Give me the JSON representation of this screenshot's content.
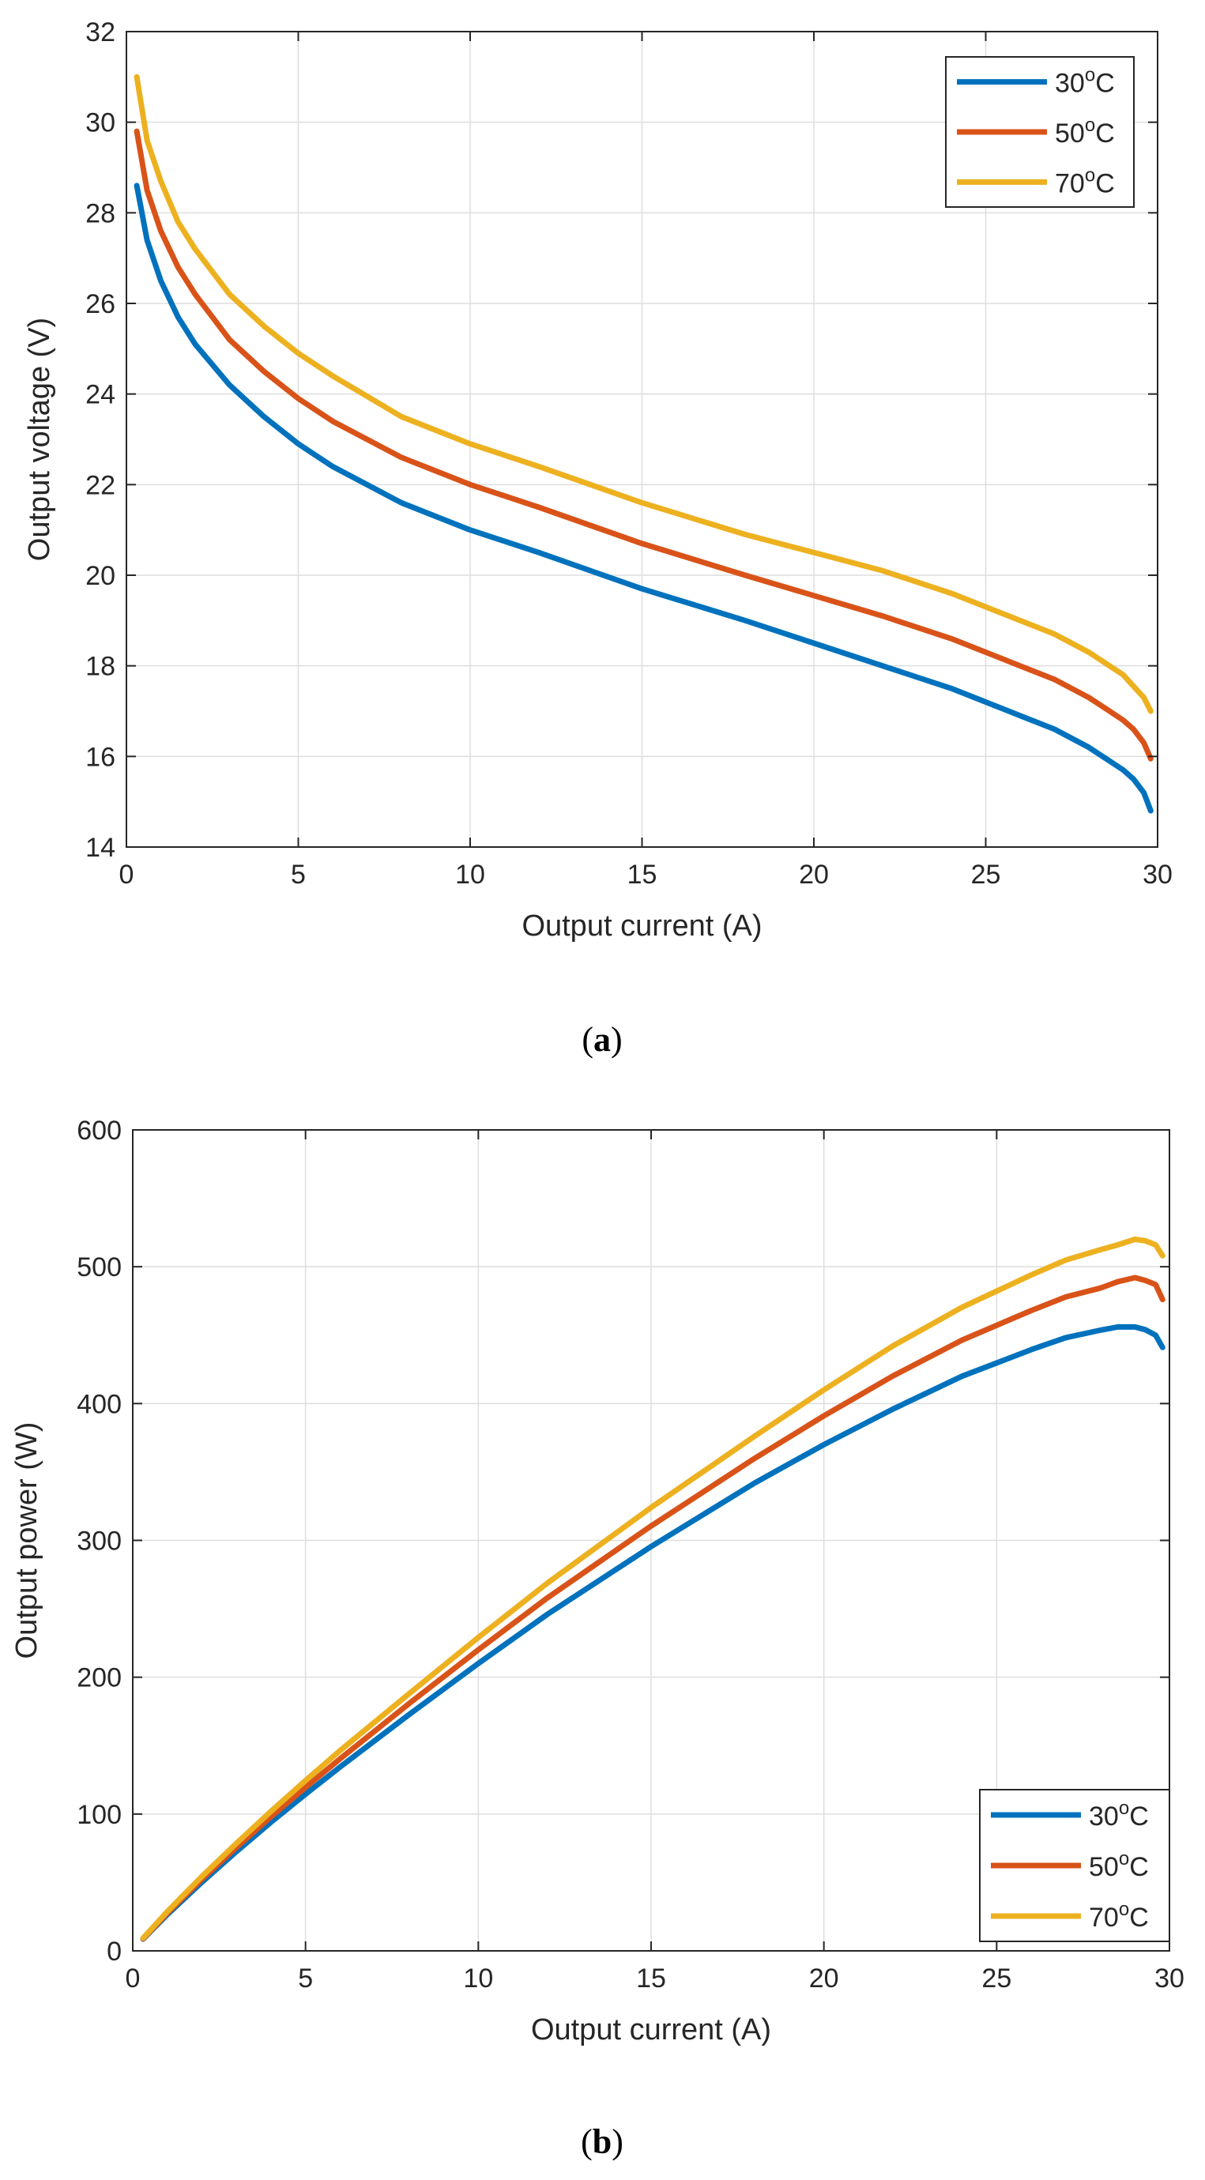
{
  "figure": {
    "caption_a": {
      "open": "(",
      "letter": "a",
      "close": ")"
    },
    "caption_b": {
      "open": "(",
      "letter": "b",
      "close": ")"
    }
  },
  "chart_data": [
    {
      "id": "a",
      "type": "line",
      "title": "",
      "xlabel": "Output current (A)",
      "ylabel": "Output voltage (V)",
      "xlim": [
        0,
        30
      ],
      "ylim": [
        14,
        32
      ],
      "xticks": [
        0,
        5,
        10,
        15,
        20,
        25,
        30
      ],
      "yticks": [
        14,
        16,
        18,
        20,
        22,
        24,
        26,
        28,
        30,
        32
      ],
      "grid": true,
      "legend_position": "top-right",
      "x": [
        0.3,
        0.6,
        1,
        1.5,
        2,
        3,
        4,
        5,
        6,
        8,
        10,
        12,
        15,
        18,
        20,
        22,
        24,
        26,
        27,
        28,
        28.5,
        29,
        29.3,
        29.6,
        29.8
      ],
      "series": [
        {
          "name": "30",
          "unit": "C",
          "color": "#0072BD",
          "values": [
            28.6,
            27.4,
            26.5,
            25.7,
            25.1,
            24.2,
            23.5,
            22.9,
            22.4,
            21.6,
            21.0,
            20.5,
            19.7,
            19.0,
            18.5,
            18.0,
            17.5,
            16.9,
            16.6,
            16.2,
            15.95,
            15.7,
            15.5,
            15.2,
            14.8
          ]
        },
        {
          "name": "50",
          "unit": "C",
          "color": "#D95319",
          "values": [
            29.8,
            28.5,
            27.6,
            26.8,
            26.2,
            25.2,
            24.5,
            23.9,
            23.4,
            22.6,
            22.0,
            21.5,
            20.7,
            20.0,
            19.55,
            19.1,
            18.6,
            18.0,
            17.7,
            17.3,
            17.05,
            16.8,
            16.6,
            16.3,
            15.95
          ]
        },
        {
          "name": "70",
          "unit": "C",
          "color": "#EDB120",
          "values": [
            31.0,
            29.6,
            28.7,
            27.8,
            27.2,
            26.2,
            25.5,
            24.9,
            24.4,
            23.5,
            22.9,
            22.4,
            21.6,
            20.9,
            20.5,
            20.1,
            19.6,
            19.0,
            18.7,
            18.3,
            18.05,
            17.8,
            17.55,
            17.3,
            17.0
          ]
        }
      ]
    },
    {
      "id": "b",
      "type": "line",
      "title": "",
      "xlabel": "Output current (A)",
      "ylabel": "Output power (W)",
      "xlim": [
        0,
        30
      ],
      "ylim": [
        0,
        600
      ],
      "xticks": [
        0,
        5,
        10,
        15,
        20,
        25,
        30
      ],
      "yticks": [
        0,
        100,
        200,
        300,
        400,
        500,
        600
      ],
      "grid": true,
      "legend_position": "bottom-right",
      "x": [
        0.3,
        1,
        2,
        3,
        4,
        5,
        6,
        8,
        10,
        12,
        15,
        18,
        20,
        22,
        24,
        26,
        27,
        28,
        28.5,
        29,
        29.3,
        29.6,
        29.8
      ],
      "series": [
        {
          "name": "30",
          "unit": "C",
          "color": "#0072BD",
          "values": [
            8.6,
            26.5,
            50.2,
            72.6,
            94.0,
            114.5,
            134.4,
            172.8,
            210.0,
            246.0,
            295.5,
            342.0,
            370.0,
            396.0,
            420.0,
            439.4,
            448.2,
            453.6,
            456.0,
            456.0,
            454.0,
            450.0,
            441.0
          ]
        },
        {
          "name": "50",
          "unit": "C",
          "color": "#D95319",
          "values": [
            8.9,
            27.6,
            52.4,
            75.6,
            98.0,
            119.5,
            140.4,
            180.8,
            220.0,
            258.0,
            310.5,
            360.0,
            391.0,
            420.2,
            446.4,
            468.0,
            477.9,
            484.4,
            489.0,
            492.0,
            490.0,
            487.0,
            476.0
          ]
        },
        {
          "name": "70",
          "unit": "C",
          "color": "#EDB120",
          "values": [
            9.3,
            28.7,
            54.4,
            78.6,
            102.0,
            124.5,
            146.4,
            188.0,
            229.0,
            268.8,
            324.0,
            376.2,
            410.0,
            442.2,
            470.4,
            494.0,
            504.9,
            512.4,
            516.0,
            520.0,
            519.0,
            516.0,
            508.0
          ]
        }
      ]
    }
  ]
}
